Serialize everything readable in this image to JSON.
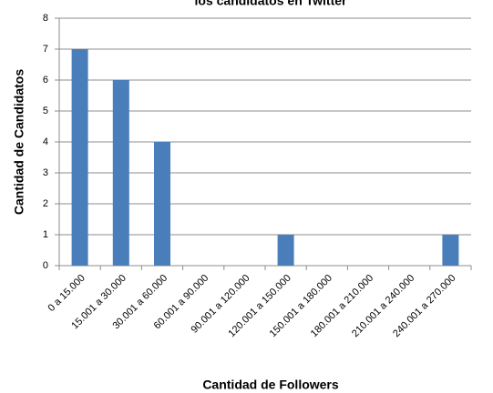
{
  "chart_data": {
    "type": "bar",
    "title": "los candidatos en Twitter",
    "x_label": "Cantidad de Followers",
    "y_label": "Cantidad de Candidatos",
    "categories": [
      "0 a 15.000",
      "15.001 a 30.000",
      "30.001 a 60.000",
      "60.001 a 90.000",
      "90.001 a 120.000",
      "120.001 a 150.000",
      "150.001 a 180.000",
      "180.001 a 210.000",
      "210.001 a 240.000",
      "240.001 a 270.000"
    ],
    "values": [
      7,
      6,
      4,
      0,
      0,
      1,
      0,
      0,
      0,
      1
    ],
    "color": "#4a7ebb",
    "ylim": [
      0,
      8
    ],
    "yticks": [
      0,
      1,
      2,
      3,
      4,
      5,
      6,
      7,
      8
    ],
    "grid": true
  }
}
